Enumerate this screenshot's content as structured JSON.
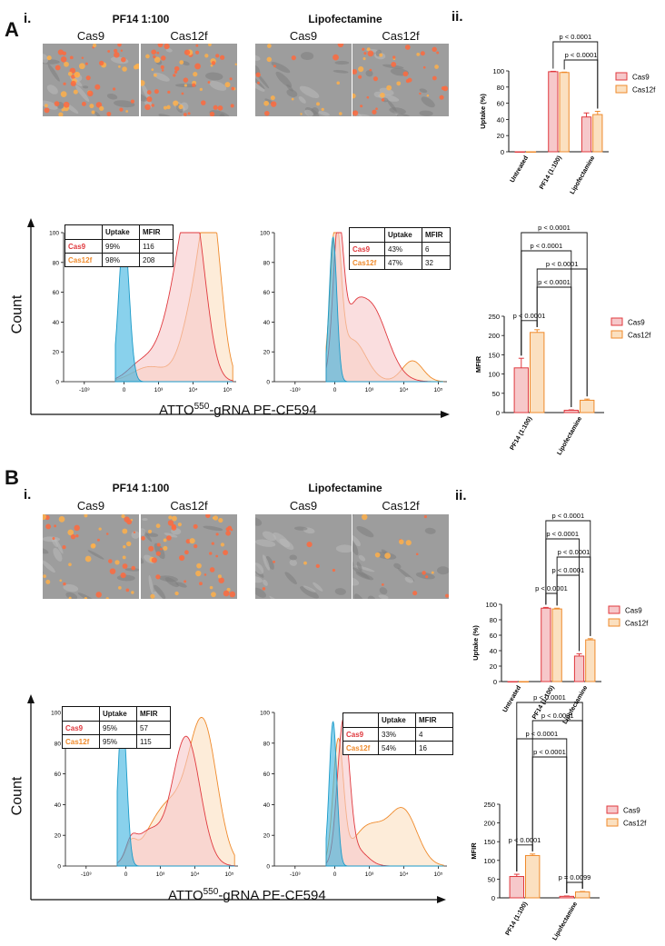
{
  "panelA": {
    "letter": "A",
    "sub_i": "i.",
    "sub_ii": "ii.",
    "micro": {
      "group1": "PF14 1:100",
      "group2": "Lipofectamine",
      "labels": [
        "Cas9",
        "Cas12f",
        "Cas9",
        "Cas12f"
      ]
    },
    "flow": {
      "count_label": "Count",
      "x_label_pre": "ATTO",
      "x_label_sup": "550",
      "x_label_post": "-gRNA PE-CF594",
      "yticks": [
        "0",
        "20",
        "40",
        "60",
        "80",
        "100"
      ],
      "xticks": [
        "-10³",
        "0",
        "10³",
        "10⁴",
        "10⁵"
      ],
      "pf14_table": {
        "headers": [
          "Uptake",
          "MFIR"
        ],
        "rows": [
          [
            "Cas9",
            "99%",
            "116"
          ],
          [
            "Cas12f",
            "98%",
            "208"
          ]
        ]
      },
      "lipo_table": {
        "headers": [
          "Uptake",
          "MFIR"
        ],
        "rows": [
          [
            "Cas9",
            "43%",
            "6"
          ],
          [
            "Cas12f",
            "47%",
            "32"
          ]
        ]
      }
    }
  },
  "panelB": {
    "letter": "B",
    "sub_i": "i.",
    "sub_ii": "ii.",
    "micro": {
      "group1": "PF14 1:100",
      "group2": "Lipofectamine",
      "labels": [
        "Cas9",
        "Cas12f",
        "Cas9",
        "Cas12f"
      ]
    },
    "flow": {
      "count_label": "Count",
      "x_label_pre": "ATTO",
      "x_label_sup": "550",
      "x_label_post": "-gRNA PE-CF594",
      "yticks": [
        "0",
        "20",
        "40",
        "60",
        "80",
        "100"
      ],
      "xticks": [
        "-10³",
        "0",
        "10³",
        "10⁴",
        "10⁵"
      ],
      "pf14_table": {
        "headers": [
          "Uptake",
          "MFIR"
        ],
        "rows": [
          [
            "Cas9",
            "95%",
            "57"
          ],
          [
            "Cas12f",
            "95%",
            "115"
          ]
        ]
      },
      "lipo_table": {
        "headers": [
          "Uptake",
          "MFIR"
        ],
        "rows": [
          [
            "Cas9",
            "33%",
            "4"
          ],
          [
            "Cas12f",
            "54%",
            "16"
          ]
        ]
      }
    }
  },
  "colors": {
    "cas9": "#e0393e",
    "cas9_fill": "#f6c8ca",
    "cas12f": "#ef8a2b",
    "cas12f_fill": "#fbe0c0",
    "control": "#3bb3e0"
  },
  "chart_data": [
    {
      "id": "A_uptake",
      "type": "bar",
      "categories": [
        "Untreated",
        "PF14 (1:100)",
        "Lipofectamine"
      ],
      "ylabel": "Uptake (%)",
      "ylim": [
        0,
        100
      ],
      "yticks": [
        0,
        20,
        40,
        60,
        80,
        100
      ],
      "legend": "right",
      "series": [
        {
          "name": "Cas9",
          "values": [
            0,
            99,
            43
          ],
          "errors": [
            0,
            0.5,
            5
          ]
        },
        {
          "name": "Cas12f",
          "values": [
            0,
            98,
            46
          ],
          "errors": [
            0,
            0.5,
            4
          ]
        }
      ],
      "annotations": [
        "p < 0.0001",
        "p < 0.0001"
      ]
    },
    {
      "id": "A_mfir",
      "type": "bar",
      "categories": [
        "PF14 (1:100)",
        "Lipofectamine"
      ],
      "ylabel": "MFIR",
      "ylim": [
        0,
        250
      ],
      "yticks": [
        0,
        50,
        100,
        150,
        200,
        250
      ],
      "legend": "right",
      "series": [
        {
          "name": "Cas9",
          "values": [
            116,
            6
          ],
          "errors": [
            25,
            1
          ]
        },
        {
          "name": "Cas12f",
          "values": [
            208,
            32
          ],
          "errors": [
            7,
            3
          ]
        }
      ],
      "annotations": [
        "p < 0.0001",
        "p < 0.0001",
        "p < 0.0001",
        "p < 0.0001",
        "p < 0.0001"
      ]
    },
    {
      "id": "B_uptake",
      "type": "bar",
      "categories": [
        "Untreated",
        "PF14 (1:100)",
        "Lipofectamine"
      ],
      "ylabel": "Uptake (%)",
      "ylim": [
        0,
        100
      ],
      "yticks": [
        0,
        20,
        40,
        60,
        80,
        100
      ],
      "legend": "right",
      "series": [
        {
          "name": "Cas9",
          "values": [
            0,
            95,
            33
          ],
          "errors": [
            0,
            1,
            3
          ]
        },
        {
          "name": "Cas12f",
          "values": [
            0,
            94,
            54
          ],
          "errors": [
            0,
            1,
            1.5
          ]
        }
      ],
      "annotations": [
        "p < 0.0001",
        "p < 0.0001",
        "p < 0.0001",
        "p < 0.0001",
        "p < 0.0001"
      ]
    },
    {
      "id": "B_mfir",
      "type": "bar",
      "categories": [
        "PF14 (1:100)",
        "Lipofectamine"
      ],
      "ylabel": "MFIR",
      "ylim": [
        0,
        250
      ],
      "yticks": [
        0,
        50,
        100,
        150,
        200,
        250
      ],
      "legend": "right",
      "series": [
        {
          "name": "Cas9",
          "values": [
            57,
            4
          ],
          "errors": [
            6,
            1
          ]
        },
        {
          "name": "Cas12f",
          "values": [
            113,
            16
          ],
          "errors": [
            4,
            1
          ]
        }
      ],
      "annotations": [
        "p < 0.0001",
        "p < 0.0001",
        "p < 0.0001",
        "p < 0.0001",
        "p < 0.0001",
        "p = 0.0099"
      ]
    }
  ]
}
